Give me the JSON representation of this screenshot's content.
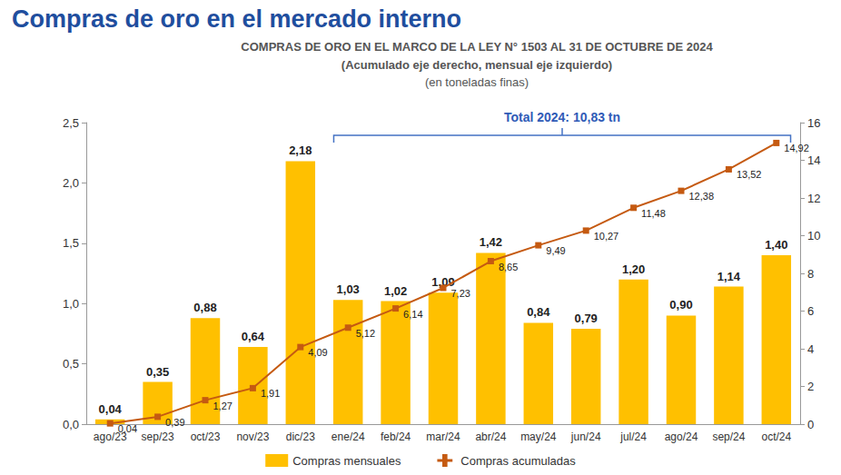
{
  "chart_data": {
    "type": "bar",
    "title": "Compras de oro en el mercado interno",
    "subtitle": "COMPRAS DE ORO EN EL MARCO DE LA LEY N° 1503 AL 31 DE OCTUBRE DE 2024",
    "subtitle_lines": [
      "(Acumulado eje derecho, mensual eje izquierdo)",
      "(en toneladas finas)"
    ],
    "categories": [
      "ago/23",
      "sep/23",
      "oct/23",
      "nov/23",
      "dic/23",
      "ene/24",
      "feb/24",
      "mar/24",
      "abr/24",
      "may/24",
      "jun/24",
      "jul/24",
      "ago/24",
      "sep/24",
      "oct/24"
    ],
    "series": [
      {
        "name": "Compras mensuales",
        "type": "bar",
        "color": "#FFC000",
        "values": [
          0.04,
          0.35,
          0.88,
          0.64,
          2.18,
          1.03,
          1.02,
          1.09,
          1.42,
          0.84,
          0.79,
          1.2,
          0.9,
          1.14,
          1.4
        ],
        "value_labels": [
          "0,04",
          "0,35",
          "0,88",
          "0,64",
          "2,18",
          "1,03",
          "1,02",
          "1,09",
          "1,42",
          "0,84",
          "0,79",
          "1,20",
          "0,90",
          "1,14",
          "1,40"
        ]
      },
      {
        "name": "Compras acumuladas",
        "type": "line",
        "color": "#C55A11",
        "marker": "square",
        "axis": "y2",
        "values": [
          0.04,
          0.39,
          1.27,
          1.91,
          4.09,
          5.12,
          6.14,
          7.23,
          8.65,
          9.49,
          10.27,
          11.48,
          12.38,
          13.52,
          14.92
        ],
        "value_labels": [
          "0,04",
          "0,39",
          "1,27",
          "1,91",
          "4,09",
          "5,12",
          "6,14",
          "7,23",
          "8,65",
          "9,49",
          "10,27",
          "11,48",
          "12,38",
          "13,52",
          "14,92"
        ]
      }
    ],
    "ylim": [
      0,
      2.5
    ],
    "yticks": [
      {
        "value": 0,
        "label": "0,0"
      },
      {
        "value": 0.5,
        "label": "0,5"
      },
      {
        "value": 1,
        "label": "1,0"
      },
      {
        "value": 1.5,
        "label": "1,5"
      },
      {
        "value": 2,
        "label": "2,0"
      },
      {
        "value": 2.5,
        "label": "2,5"
      }
    ],
    "y2lim": [
      0,
      16
    ],
    "y2ticks": [
      0,
      2,
      4,
      6,
      8,
      10,
      12,
      14,
      16
    ],
    "annotations": [
      {
        "text": "Total 2024: 10,83 tn",
        "from": "ene/24",
        "to": "oct/24"
      }
    ],
    "data_labels": true,
    "grid": false,
    "legend": "bottom"
  }
}
